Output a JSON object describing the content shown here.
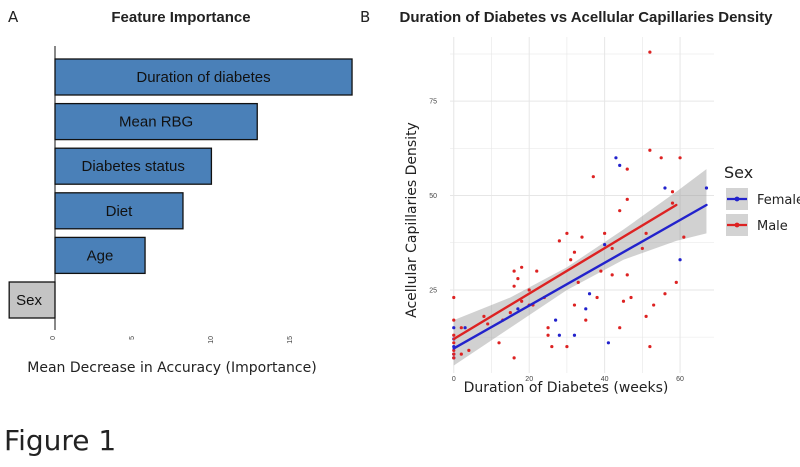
{
  "caption": "Figure 1",
  "chart_data": [
    {
      "panel": "A",
      "type": "bar",
      "orientation": "horizontal",
      "title": "Feature Importance",
      "xlabel": "Mean Decrease in Accuracy (Importance)",
      "ylabel": "",
      "xlim": [
        -3,
        19
      ],
      "xticks": [
        0,
        5,
        10,
        15
      ],
      "categories": [
        "Duration of diabetes",
        "Mean RBG",
        "Diabetes status",
        "Diet",
        "Age",
        "Sex"
      ],
      "values": [
        18.8,
        12.8,
        9.9,
        8.1,
        5.7,
        -2.9
      ],
      "colors": {
        "positive": "#4a80b8",
        "negative": "#c4c4c4",
        "edge": "#111111"
      }
    },
    {
      "panel": "B",
      "type": "scatter",
      "title": "Duration of Diabetes vs Acellular Capillaries Density",
      "xlabel": "Duration of Diabetes (weeks)",
      "ylabel": "Acellular Capillaries Density",
      "xlim": [
        -1,
        69
      ],
      "ylim": [
        3,
        92
      ],
      "xticks": [
        0,
        20,
        40,
        60
      ],
      "yticks": [
        25,
        50,
        75
      ],
      "grid": true,
      "legend": {
        "title": "Sex",
        "position": "right"
      },
      "series": [
        {
          "name": "Female",
          "color": "#2222cc",
          "points": [
            [
              0,
              15
            ],
            [
              0,
              12
            ],
            [
              0,
              10
            ],
            [
              0,
              8
            ],
            [
              0,
              7
            ],
            [
              3,
              15
            ],
            [
              17,
              20
            ],
            [
              27,
              17
            ],
            [
              28,
              13
            ],
            [
              32,
              13
            ],
            [
              35,
              20
            ],
            [
              36,
              24
            ],
            [
              40,
              37
            ],
            [
              41,
              11
            ],
            [
              43,
              60
            ],
            [
              44,
              58
            ],
            [
              56,
              52
            ],
            [
              60,
              33
            ],
            [
              67,
              52
            ]
          ],
          "fit": {
            "x": [
              0,
              67
            ],
            "y": [
              9.5,
              47.5
            ]
          }
        },
        {
          "name": "Male",
          "color": "#dd2222",
          "points": [
            [
              0,
              23
            ],
            [
              0,
              17
            ],
            [
              0,
              13
            ],
            [
              0,
              11
            ],
            [
              0,
              9
            ],
            [
              0,
              8
            ],
            [
              0,
              7
            ],
            [
              2,
              15
            ],
            [
              2,
              8
            ],
            [
              4,
              9
            ],
            [
              8,
              18
            ],
            [
              9,
              16
            ],
            [
              12,
              11
            ],
            [
              13,
              17
            ],
            [
              15,
              19
            ],
            [
              16,
              30
            ],
            [
              16,
              7
            ],
            [
              16,
              26
            ],
            [
              17,
              28
            ],
            [
              18,
              31
            ],
            [
              18,
              22
            ],
            [
              20,
              25
            ],
            [
              20,
              21
            ],
            [
              21,
              21
            ],
            [
              22,
              30
            ],
            [
              24,
              23
            ],
            [
              25,
              15
            ],
            [
              25,
              13
            ],
            [
              26,
              10
            ],
            [
              28,
              38
            ],
            [
              30,
              40
            ],
            [
              30,
              10
            ],
            [
              31,
              33
            ],
            [
              32,
              21
            ],
            [
              32,
              35
            ],
            [
              33,
              27
            ],
            [
              34,
              39
            ],
            [
              35,
              17
            ],
            [
              37,
              55
            ],
            [
              38,
              23
            ],
            [
              39,
              30
            ],
            [
              40,
              40
            ],
            [
              42,
              29
            ],
            [
              42,
              36
            ],
            [
              44,
              46
            ],
            [
              44,
              15
            ],
            [
              45,
              22
            ],
            [
              46,
              57
            ],
            [
              46,
              29
            ],
            [
              46,
              49
            ],
            [
              47,
              23
            ],
            [
              50,
              36
            ],
            [
              51,
              40
            ],
            [
              51,
              18
            ],
            [
              52,
              88
            ],
            [
              52,
              62
            ],
            [
              52,
              10
            ],
            [
              53,
              21
            ],
            [
              55,
              60
            ],
            [
              56,
              24
            ],
            [
              58,
              51
            ],
            [
              58,
              48
            ],
            [
              59,
              27
            ],
            [
              60,
              60
            ],
            [
              61,
              39
            ]
          ],
          "fit": {
            "x": [
              0,
              59
            ],
            "y": [
              12,
              47.5
            ]
          }
        }
      ],
      "confidence_band": {
        "x": [
          0,
          15,
          30,
          45,
          59,
          67
        ],
        "lower": [
          5,
          15,
          25,
          33,
          38,
          40
        ],
        "upper": [
          17,
          23,
          31,
          41,
          51,
          57
        ]
      }
    }
  ]
}
